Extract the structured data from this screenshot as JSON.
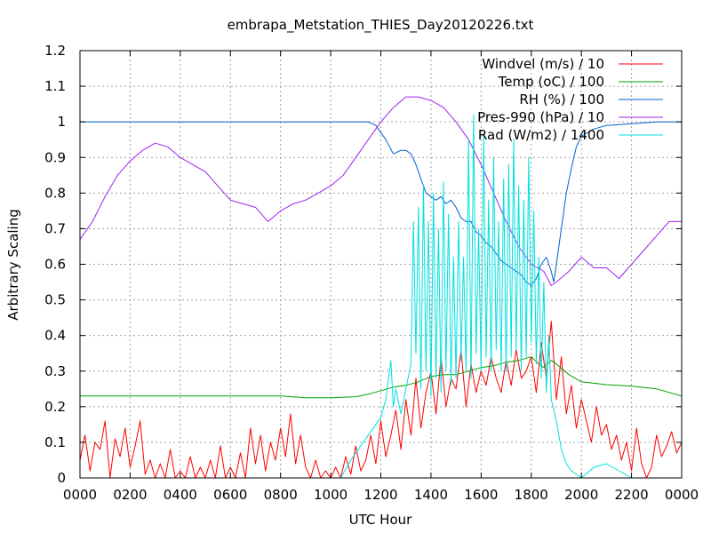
{
  "chart_data": {
    "type": "line",
    "title": "embrapa_Metstation_THIES_Day20120226.txt",
    "xlabel": "UTC Hour",
    "ylabel": "Arbitrary Scaling",
    "xlim": [
      0,
      2400
    ],
    "ylim": [
      0,
      1.2
    ],
    "grid": true,
    "legend_position": "top-right",
    "x_ticks": [
      "0000",
      "0200",
      "0400",
      "0600",
      "0800",
      "1000",
      "1200",
      "1400",
      "1600",
      "1800",
      "2000",
      "2200",
      "0000"
    ],
    "y_ticks": [
      "0",
      "0.1",
      "0.2",
      "0.3",
      "0.4",
      "0.5",
      "0.6",
      "0.7",
      "0.8",
      "0.9",
      "1",
      "1.1",
      "1.2"
    ],
    "series": [
      {
        "name": "Windvel (m/s) / 10",
        "color": "#ff0000",
        "x": [
          0,
          20,
          40,
          60,
          80,
          100,
          120,
          140,
          160,
          180,
          200,
          220,
          240,
          260,
          280,
          300,
          320,
          340,
          360,
          380,
          400,
          420,
          440,
          460,
          480,
          500,
          520,
          540,
          560,
          580,
          600,
          620,
          640,
          660,
          680,
          700,
          720,
          740,
          760,
          780,
          800,
          820,
          840,
          860,
          880,
          900,
          920,
          940,
          960,
          980,
          1000,
          1020,
          1040,
          1060,
          1080,
          1100,
          1120,
          1140,
          1160,
          1180,
          1200,
          1220,
          1240,
          1260,
          1280,
          1300,
          1320,
          1340,
          1360,
          1380,
          1400,
          1420,
          1440,
          1460,
          1480,
          1500,
          1520,
          1540,
          1560,
          1580,
          1600,
          1620,
          1640,
          1660,
          1680,
          1700,
          1720,
          1740,
          1760,
          1780,
          1800,
          1820,
          1840,
          1860,
          1880,
          1900,
          1920,
          1940,
          1960,
          1980,
          2000,
          2020,
          2040,
          2060,
          2080,
          2100,
          2120,
          2140,
          2160,
          2180,
          2200,
          2220,
          2240,
          2260,
          2280,
          2300,
          2320,
          2340,
          2360,
          2380,
          2400
        ],
        "y": [
          0.05,
          0.12,
          0.02,
          0.1,
          0.08,
          0.16,
          0.0,
          0.11,
          0.06,
          0.14,
          0.03,
          0.09,
          0.16,
          0.01,
          0.05,
          0.0,
          0.04,
          0.0,
          0.08,
          0.0,
          0.02,
          0.0,
          0.06,
          0.0,
          0.03,
          0.0,
          0.05,
          0.0,
          0.09,
          0.0,
          0.03,
          0.0,
          0.07,
          0.0,
          0.14,
          0.04,
          0.12,
          0.02,
          0.1,
          0.05,
          0.14,
          0.06,
          0.18,
          0.04,
          0.12,
          0.03,
          0.0,
          0.05,
          0.0,
          0.02,
          0.0,
          0.03,
          0.0,
          0.06,
          0.01,
          0.09,
          0.02,
          0.05,
          0.12,
          0.04,
          0.16,
          0.06,
          0.12,
          0.19,
          0.08,
          0.22,
          0.12,
          0.28,
          0.14,
          0.24,
          0.3,
          0.18,
          0.34,
          0.2,
          0.28,
          0.25,
          0.36,
          0.2,
          0.32,
          0.24,
          0.3,
          0.26,
          0.34,
          0.28,
          0.24,
          0.33,
          0.26,
          0.36,
          0.28,
          0.3,
          0.34,
          0.24,
          0.38,
          0.28,
          0.44,
          0.22,
          0.34,
          0.18,
          0.26,
          0.14,
          0.22,
          0.16,
          0.1,
          0.2,
          0.12,
          0.15,
          0.08,
          0.12,
          0.05,
          0.1,
          0.02,
          0.14,
          0.04,
          0.0,
          0.03,
          0.12,
          0.06,
          0.09,
          0.13,
          0.07,
          0.1
        ]
      },
      {
        "name": "Temp (oC) / 100",
        "color": "#00a000",
        "x": [
          0,
          200,
          400,
          600,
          800,
          900,
          1000,
          1100,
          1150,
          1200,
          1250,
          1300,
          1350,
          1400,
          1450,
          1500,
          1550,
          1600,
          1650,
          1700,
          1750,
          1800,
          1830,
          1850,
          1880,
          1900,
          1950,
          2000,
          2100,
          2200,
          2300,
          2400
        ],
        "y": [
          0.23,
          0.23,
          0.23,
          0.23,
          0.23,
          0.225,
          0.225,
          0.228,
          0.235,
          0.245,
          0.255,
          0.26,
          0.27,
          0.285,
          0.29,
          0.29,
          0.3,
          0.31,
          0.315,
          0.325,
          0.33,
          0.34,
          0.32,
          0.31,
          0.33,
          0.32,
          0.29,
          0.27,
          0.262,
          0.258,
          0.25,
          0.23
        ]
      },
      {
        "name": "RH (%) / 100",
        "color": "#0060d0",
        "x": [
          0,
          200,
          400,
          600,
          800,
          1000,
          1100,
          1150,
          1180,
          1200,
          1220,
          1250,
          1280,
          1300,
          1320,
          1340,
          1360,
          1380,
          1400,
          1420,
          1440,
          1460,
          1480,
          1500,
          1520,
          1540,
          1560,
          1580,
          1600,
          1620,
          1640,
          1660,
          1680,
          1700,
          1720,
          1740,
          1760,
          1780,
          1800,
          1820,
          1840,
          1860,
          1880,
          1890,
          1900,
          1920,
          1940,
          1960,
          1980,
          2000,
          2050,
          2100,
          2200,
          2300,
          2400
        ],
        "y": [
          1.0,
          1.0,
          1.0,
          1.0,
          1.0,
          1.0,
          1.0,
          1.0,
          0.99,
          0.97,
          0.95,
          0.91,
          0.92,
          0.92,
          0.91,
          0.88,
          0.84,
          0.8,
          0.79,
          0.78,
          0.79,
          0.77,
          0.78,
          0.76,
          0.73,
          0.72,
          0.72,
          0.69,
          0.68,
          0.66,
          0.65,
          0.63,
          0.61,
          0.6,
          0.59,
          0.58,
          0.57,
          0.55,
          0.54,
          0.56,
          0.6,
          0.62,
          0.58,
          0.55,
          0.6,
          0.7,
          0.8,
          0.87,
          0.93,
          0.96,
          0.98,
          0.99,
          0.995,
          1.0,
          1.0
        ]
      },
      {
        "name": "Pres-990 (hPa) / 10",
        "color": "#a020f0",
        "x": [
          0,
          50,
          100,
          150,
          200,
          250,
          300,
          350,
          400,
          450,
          500,
          550,
          600,
          650,
          700,
          750,
          800,
          850,
          900,
          950,
          1000,
          1050,
          1100,
          1150,
          1200,
          1250,
          1300,
          1350,
          1400,
          1450,
          1500,
          1550,
          1600,
          1650,
          1700,
          1750,
          1800,
          1850,
          1880,
          1900,
          1950,
          2000,
          2050,
          2100,
          2150,
          2200,
          2250,
          2300,
          2350,
          2400
        ],
        "y": [
          0.67,
          0.72,
          0.79,
          0.85,
          0.89,
          0.92,
          0.94,
          0.93,
          0.9,
          0.88,
          0.86,
          0.82,
          0.78,
          0.77,
          0.76,
          0.72,
          0.75,
          0.77,
          0.78,
          0.8,
          0.82,
          0.85,
          0.9,
          0.95,
          1.0,
          1.04,
          1.07,
          1.07,
          1.06,
          1.04,
          1.0,
          0.95,
          0.88,
          0.8,
          0.72,
          0.65,
          0.6,
          0.58,
          0.54,
          0.55,
          0.58,
          0.62,
          0.59,
          0.59,
          0.56,
          0.6,
          0.64,
          0.68,
          0.72,
          0.72
        ]
      },
      {
        "name": "Rad (W/m2) / 1400",
        "color": "#00e0e0",
        "x": [
          0,
          200,
          400,
          600,
          800,
          900,
          1000,
          1040,
          1080,
          1120,
          1160,
          1200,
          1220,
          1240,
          1250,
          1260,
          1280,
          1300,
          1320,
          1330,
          1340,
          1350,
          1360,
          1370,
          1380,
          1390,
          1400,
          1410,
          1420,
          1430,
          1440,
          1450,
          1460,
          1470,
          1480,
          1490,
          1500,
          1510,
          1520,
          1530,
          1540,
          1550,
          1560,
          1570,
          1580,
          1590,
          1600,
          1610,
          1620,
          1630,
          1640,
          1650,
          1660,
          1670,
          1680,
          1690,
          1700,
          1710,
          1720,
          1730,
          1740,
          1750,
          1760,
          1770,
          1780,
          1790,
          1800,
          1810,
          1820,
          1830,
          1840,
          1850,
          1860,
          1870,
          1880,
          1900,
          1920,
          1940,
          1960,
          1980,
          2000,
          2050,
          2100,
          2150,
          2200,
          2250,
          2300,
          2350,
          2400
        ],
        "y": [
          0,
          0,
          0,
          0,
          0,
          0,
          0,
          0,
          0.05,
          0.09,
          0.13,
          0.17,
          0.22,
          0.33,
          0.2,
          0.25,
          0.18,
          0.25,
          0.32,
          0.72,
          0.35,
          0.76,
          0.25,
          0.82,
          0.3,
          0.72,
          0.23,
          0.8,
          0.28,
          0.7,
          0.24,
          0.83,
          0.3,
          0.74,
          0.26,
          0.62,
          0.28,
          0.72,
          0.33,
          0.62,
          0.3,
          0.95,
          0.28,
          1.02,
          0.35,
          0.7,
          0.3,
          0.96,
          0.34,
          0.78,
          0.3,
          0.9,
          0.36,
          0.72,
          0.3,
          0.84,
          0.3,
          0.88,
          0.34,
          0.95,
          0.36,
          0.82,
          0.3,
          0.78,
          0.34,
          0.9,
          0.38,
          0.75,
          0.32,
          0.62,
          0.28,
          0.55,
          0.24,
          0.4,
          0.22,
          0.16,
          0.08,
          0.04,
          0.02,
          0.01,
          0,
          0.03,
          0.04,
          0.02,
          0,
          0,
          0,
          0,
          0
        ]
      }
    ]
  }
}
